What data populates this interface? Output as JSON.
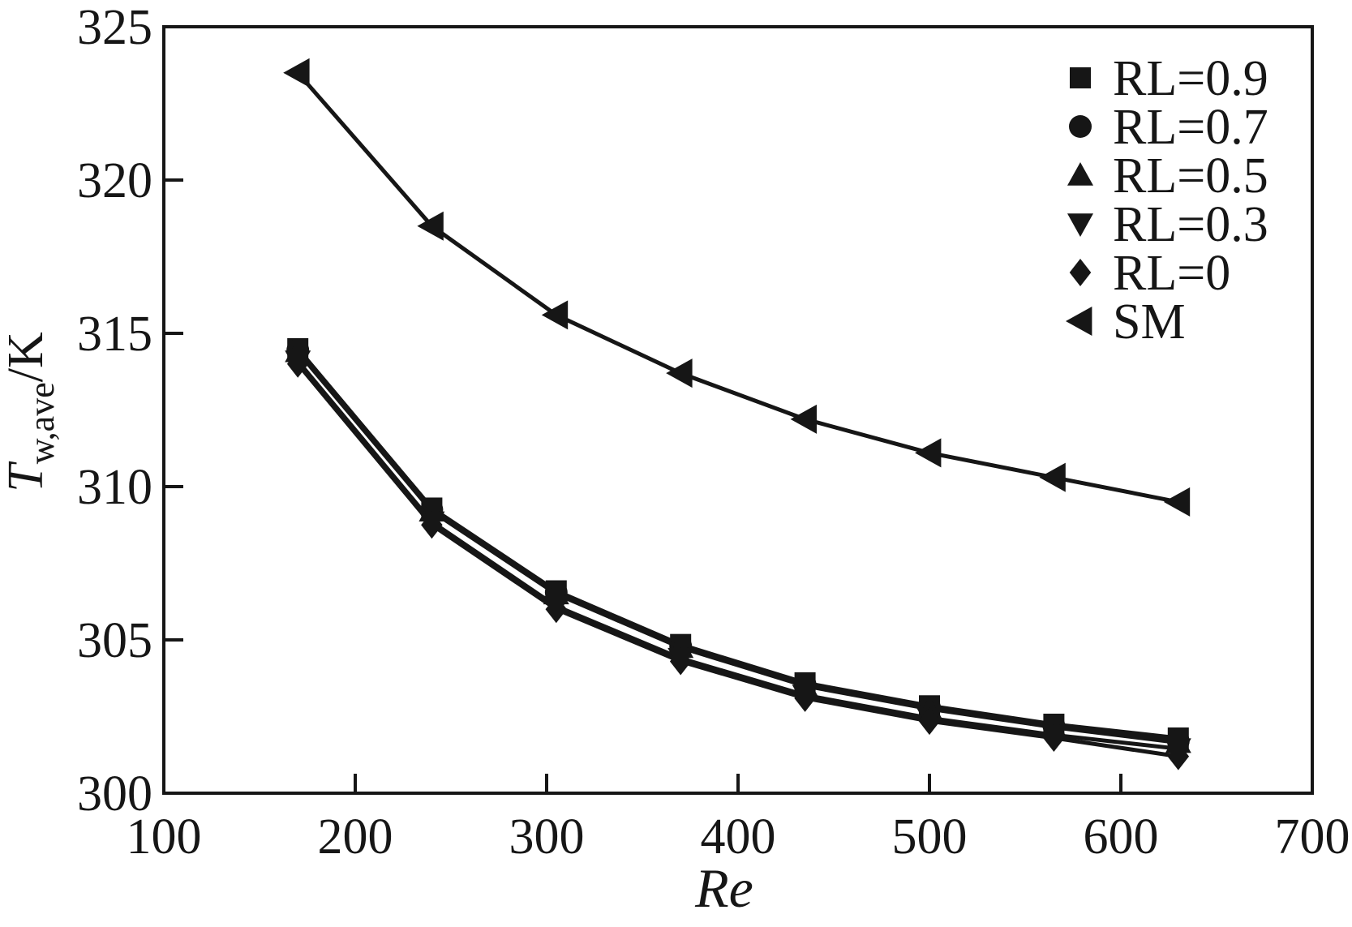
{
  "chart_data": {
    "type": "line",
    "title": "",
    "xlabel": "Re",
    "ylabel": {
      "symbol": "T",
      "subscript": "w,ave",
      "unit": "/K"
    },
    "xlim": [
      100,
      700
    ],
    "ylim": [
      300,
      325
    ],
    "xticks": [
      100,
      200,
      300,
      400,
      500,
      600,
      700
    ],
    "yticks": [
      300,
      305,
      310,
      315,
      320,
      325
    ],
    "grid": false,
    "legend_position": "top-right",
    "ink_color": "#161616",
    "background_color": "#ffffff",
    "x": [
      170,
      240,
      305,
      370,
      435,
      500,
      565,
      630
    ],
    "series": [
      {
        "name": "RL=0.9",
        "marker": "square",
        "values": [
          314.5,
          309.3,
          306.6,
          304.85,
          303.6,
          302.85,
          302.25,
          301.8
        ]
      },
      {
        "name": "RL=0.7",
        "marker": "circle",
        "values": [
          314.45,
          309.25,
          306.55,
          304.8,
          303.55,
          302.8,
          302.2,
          301.7
        ]
      },
      {
        "name": "RL=0.5",
        "marker": "triangle-up",
        "values": [
          314.4,
          309.2,
          306.5,
          304.75,
          303.5,
          302.75,
          302.15,
          301.65
        ]
      },
      {
        "name": "RL=0.3",
        "marker": "triangle-down",
        "values": [
          314.1,
          308.85,
          306.1,
          304.4,
          303.2,
          302.45,
          301.9,
          301.45
        ]
      },
      {
        "name": "RL=0",
        "marker": "diamond",
        "values": [
          314.0,
          308.75,
          306.0,
          304.3,
          303.1,
          302.35,
          301.8,
          301.2
        ]
      },
      {
        "name": "SM",
        "marker": "triangle-left",
        "values": [
          323.5,
          318.5,
          315.6,
          313.7,
          312.2,
          311.1,
          310.3,
          309.5
        ]
      }
    ]
  }
}
